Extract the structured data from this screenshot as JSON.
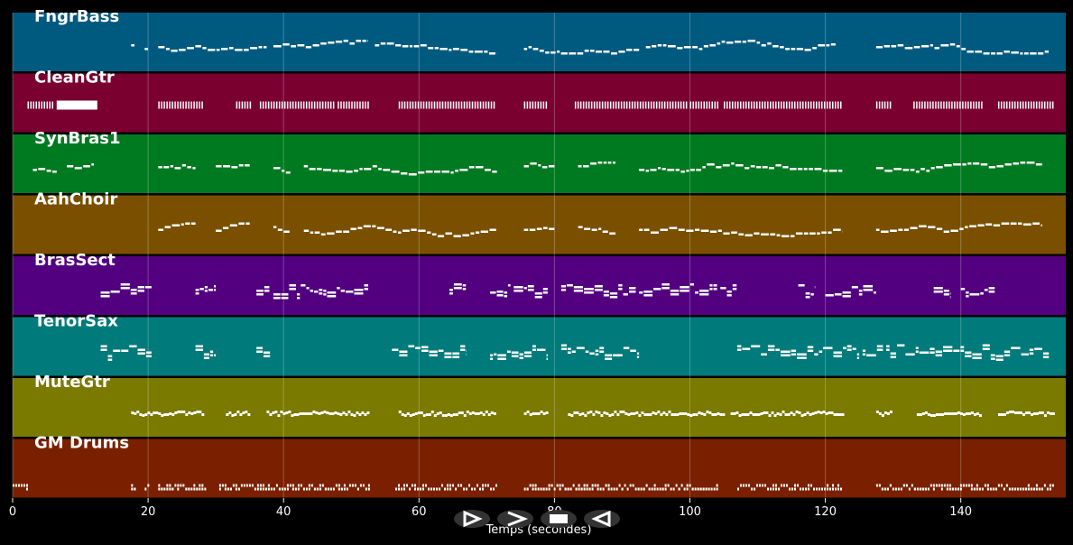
{
  "chart_data": {
    "type": "piano-roll",
    "xlabel": "Temps (secondes)",
    "xlim": [
      0,
      155.5
    ],
    "xticks": [
      0,
      20,
      40,
      60,
      80,
      100,
      120,
      140
    ],
    "grid": true,
    "tracks": [
      {
        "name": "FngrBass",
        "color": "#005a80",
        "segments": [
          [
            17.5,
            18
          ],
          [
            19.5,
            20
          ],
          [
            21.5,
            37.5
          ],
          [
            38.5,
            52.5
          ],
          [
            53.5,
            71.5
          ],
          [
            75.5,
            92.5
          ],
          [
            93.5,
            121.5
          ],
          [
            127.5,
            153
          ]
        ],
        "note_style": "bass"
      },
      {
        "name": "CleanGtr",
        "color": "#7a0030",
        "segments": [
          [
            2.2,
            6
          ],
          [
            6.5,
            12.5
          ],
          [
            21.5,
            28
          ],
          [
            33,
            35
          ],
          [
            36.5,
            47.5
          ],
          [
            48,
            52.5
          ],
          [
            57,
            71
          ],
          [
            75.5,
            79
          ],
          [
            83,
            99.5
          ],
          [
            100,
            104
          ],
          [
            105,
            122.5
          ],
          [
            127.5,
            129.5
          ],
          [
            133,
            143
          ],
          [
            145.5,
            153.5
          ]
        ],
        "note_style": "chords"
      },
      {
        "name": "SynBras1",
        "color": "#007a20",
        "segments": [
          [
            3,
            6.5
          ],
          [
            8,
            12
          ],
          [
            21.5,
            27
          ],
          [
            30,
            35
          ],
          [
            38.5,
            41
          ],
          [
            43,
            71.5
          ],
          [
            75.5,
            80
          ],
          [
            83.5,
            89
          ],
          [
            92.5,
            122.5
          ],
          [
            127.5,
            152
          ]
        ],
        "note_style": "line"
      },
      {
        "name": "AahChoir",
        "color": "#7a5000",
        "segments": [
          [
            21.5,
            27
          ],
          [
            30,
            35
          ],
          [
            38.5,
            41
          ],
          [
            43,
            71.5
          ],
          [
            75.5,
            80
          ],
          [
            83.5,
            89
          ],
          [
            92.5,
            122.5
          ],
          [
            127.5,
            152
          ]
        ],
        "note_style": "line"
      },
      {
        "name": "BrasSect",
        "color": "#520080",
        "segments": [
          [
            13,
            20.5
          ],
          [
            27,
            30
          ],
          [
            36,
            38
          ],
          [
            38.5,
            52.5
          ],
          [
            64.5,
            67
          ],
          [
            70.5,
            73.5
          ],
          [
            74,
            79
          ],
          [
            81,
            92
          ],
          [
            92.5,
            104
          ],
          [
            104.5,
            107
          ],
          [
            116,
            118.5
          ],
          [
            120,
            127.5
          ],
          [
            136,
            138.5
          ],
          [
            140,
            145
          ]
        ],
        "note_style": "brass"
      },
      {
        "name": "TenorSax",
        "color": "#007a7a",
        "segments": [
          [
            13,
            20.5
          ],
          [
            27,
            30
          ],
          [
            36,
            38
          ],
          [
            56,
            67
          ],
          [
            70.5,
            79
          ],
          [
            81,
            92.5
          ],
          [
            107,
            125
          ],
          [
            125.5,
            128.5
          ],
          [
            129,
            153
          ]
        ],
        "note_style": "sax"
      },
      {
        "name": "MuteGtr",
        "color": "#7a7a00",
        "segments": [
          [
            17.5,
            28
          ],
          [
            31.5,
            35
          ],
          [
            37.5,
            52.5
          ],
          [
            57,
            71
          ],
          [
            75.5,
            79
          ],
          [
            82,
            105
          ],
          [
            106,
            122.5
          ],
          [
            127.5,
            129.5
          ],
          [
            133.5,
            143
          ],
          [
            145.5,
            153.5
          ]
        ],
        "note_style": "dense"
      },
      {
        "name": "GM Drums",
        "color": "#7a2000",
        "segments": [
          [
            0,
            2
          ],
          [
            17.5,
            18
          ],
          [
            19.5,
            20
          ],
          [
            21.5,
            28.5
          ],
          [
            30.5,
            52.5
          ],
          [
            56.5,
            71.5
          ],
          [
            75.5,
            104
          ],
          [
            107,
            122.5
          ],
          [
            127.5,
            153.5
          ]
        ],
        "note_style": "drums"
      }
    ]
  },
  "player": {
    "buttons": [
      "play-button",
      "fast-forward-button",
      "stop-button",
      "rewind-button"
    ]
  }
}
